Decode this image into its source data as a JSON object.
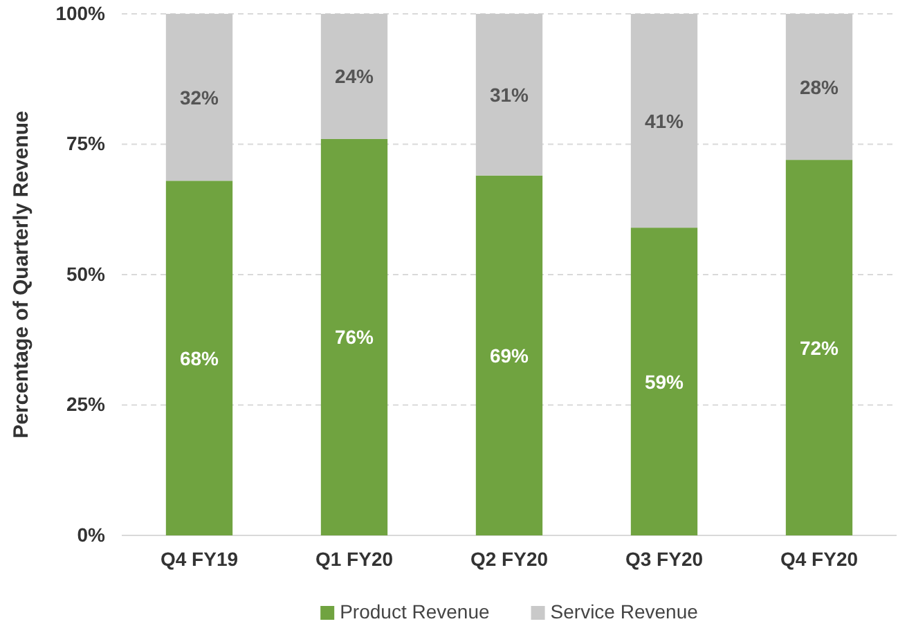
{
  "chart_data": {
    "type": "bar",
    "stacked": true,
    "ylabel": "Percentage of Quarterly Revenue",
    "categories": [
      "Q4 FY19",
      "Q1 FY20",
      "Q2 FY20",
      "Q3 FY20",
      "Q4 FY20"
    ],
    "series": [
      {
        "name": "Product Revenue",
        "color": "#70a340",
        "values": [
          68,
          76,
          69,
          59,
          72
        ],
        "value_labels": [
          "68%",
          "76%",
          "69%",
          "59%",
          "72%"
        ]
      },
      {
        "name": "Service Revenue",
        "color": "#c9c9c9",
        "values": [
          32,
          24,
          31,
          41,
          28
        ],
        "value_labels": [
          "32%",
          "24%",
          "31%",
          "41%",
          "28%"
        ]
      }
    ],
    "ylim": [
      0,
      100
    ],
    "yticks": [
      {
        "value": 0,
        "label": "0%"
      },
      {
        "value": 25,
        "label": "25%"
      },
      {
        "value": 50,
        "label": "50%"
      },
      {
        "value": 75,
        "label": "75%"
      },
      {
        "value": 100,
        "label": "100%"
      }
    ],
    "grid": "y",
    "legend": "bottom"
  }
}
